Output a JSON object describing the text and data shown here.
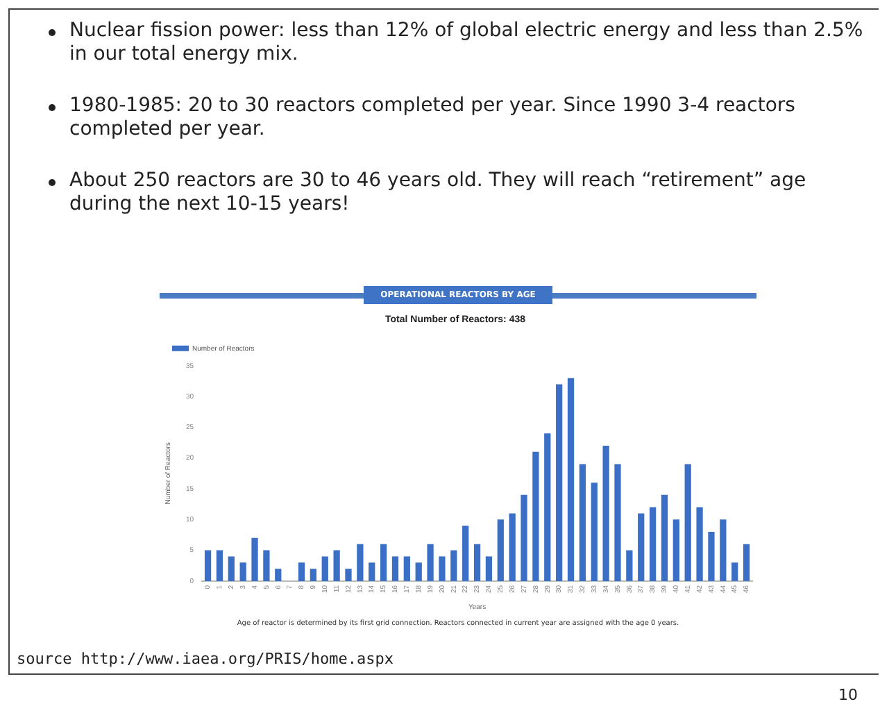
{
  "chart_data": {
    "type": "bar",
    "title": "OPERATIONAL REACTORS BY AGE",
    "subtitle": "Total Number of Reactors: 438",
    "xlabel": "Years",
    "ylabel": "Number of Reactors",
    "categories": [
      "0",
      "1",
      "2",
      "3",
      "4",
      "5",
      "6",
      "7",
      "8",
      "9",
      "10",
      "11",
      "12",
      "13",
      "14",
      "15",
      "16",
      "17",
      "18",
      "19",
      "20",
      "21",
      "22",
      "23",
      "24",
      "25",
      "26",
      "27",
      "28",
      "29",
      "30",
      "31",
      "32",
      "33",
      "34",
      "35",
      "36",
      "37",
      "38",
      "39",
      "40",
      "41",
      "42",
      "43",
      "44",
      "45",
      "46"
    ],
    "series": [
      {
        "name": "Number of Reactors",
        "color": "#3b6fc6",
        "values": [
          5,
          5,
          4,
          3,
          7,
          5,
          2,
          0,
          3,
          2,
          4,
          5,
          2,
          6,
          3,
          6,
          4,
          4,
          3,
          6,
          4,
          5,
          9,
          6,
          4,
          10,
          11,
          14,
          21,
          24,
          32,
          33,
          19,
          16,
          22,
          19,
          5,
          11,
          12,
          14,
          10,
          19,
          12,
          8,
          10,
          3,
          6
        ]
      }
    ],
    "ylim": [
      0,
      35
    ],
    "yticks": [
      0,
      5,
      10,
      15,
      20,
      25,
      30,
      35
    ],
    "grid": false,
    "legend": "top left",
    "annotations": [
      "Nuclear fission power: less than 12% of global electric energy and less than 2.5% in our total energy mix.",
      "1980-1985: 20 to 30 reactors completed per year. Since 1990 3-4 reactors completed per year.",
      "About 250 reactors are 30 to 46 years old. They will reach “retirement” age during the next 10-15 years!",
      "Age of reactor is determined by its first grid connection. Reactors connected in current year are assigned with the age 0 years.",
      "source http://www.iaea.org/PRIS/home.aspx",
      "10"
    ]
  }
}
